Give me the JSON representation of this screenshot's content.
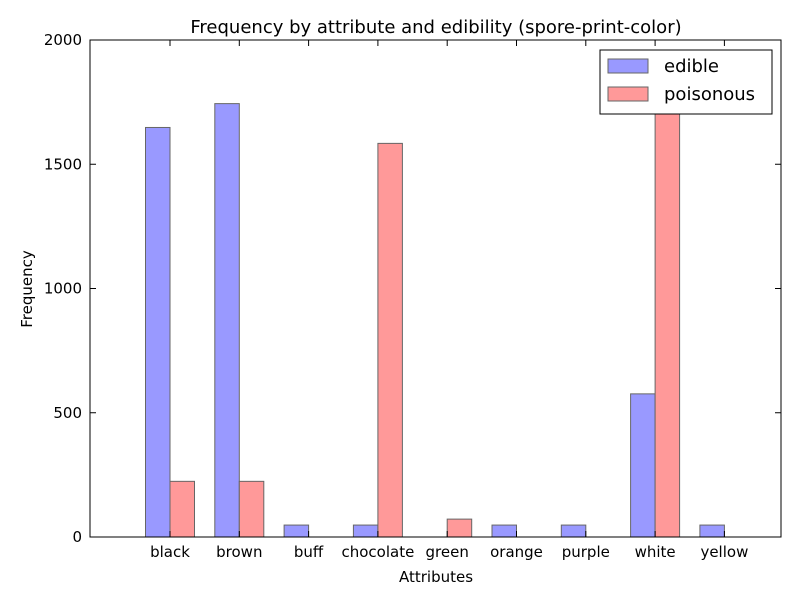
{
  "chart_data": {
    "type": "bar",
    "title": "Frequency by attribute and edibility (spore-print-color)",
    "xlabel": "Attributes",
    "ylabel": "Frequency",
    "ylim": [
      0,
      2000
    ],
    "yticks": [
      0,
      500,
      1000,
      1500,
      2000
    ],
    "categories": [
      "black",
      "brown",
      "buff",
      "chocolate",
      "green",
      "orange",
      "purple",
      "white",
      "yellow"
    ],
    "series": [
      {
        "name": "edible",
        "color": "#9999ff",
        "values": [
          1648,
          1744,
          48,
          48,
          0,
          48,
          48,
          576,
          48
        ]
      },
      {
        "name": "poisonous",
        "color": "#ff9999",
        "values": [
          224,
          224,
          0,
          1584,
          72,
          0,
          0,
          1812,
          0
        ]
      }
    ],
    "grid": false,
    "legend_position": "top-right"
  }
}
